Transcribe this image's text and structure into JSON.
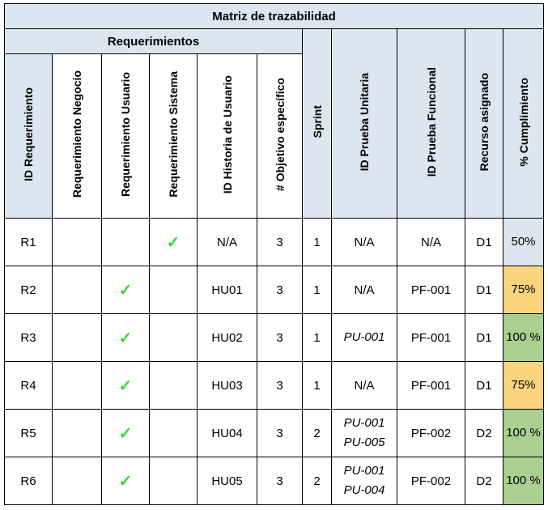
{
  "title": "Matriz de trazabilidad",
  "group_header": "Requerimientos",
  "columns": [
    "ID Requerimiento",
    "Requerimiento Negocio",
    "Requerimiento Usuario",
    "Requerimiento Sistema",
    "ID Historia de Usuario",
    "# Objetivo específico",
    "Sprint",
    "ID Prueba Unitaria",
    "ID Prueba Funcional",
    "Recurso asignado",
    "% Cumplimiento"
  ],
  "rows": [
    {
      "id": "R1",
      "negocio": "",
      "usuario": "",
      "sistema": "✓",
      "historia": "N/A",
      "objetivo": "3",
      "sprint": "1",
      "prueba_unitaria": [
        "N/A"
      ],
      "prueba_funcional": "N/A",
      "recurso": "D1",
      "cumplimiento": "50%",
      "status_color": "#dce6f1"
    },
    {
      "id": "R2",
      "negocio": "",
      "usuario": "✓",
      "sistema": "",
      "historia": "HU01",
      "objetivo": "3",
      "sprint": "1",
      "prueba_unitaria": [
        "N/A"
      ],
      "prueba_funcional": "PF-001",
      "recurso": "D1",
      "cumplimiento": "75%",
      "status_color": "#fdd47e"
    },
    {
      "id": "R3",
      "negocio": "",
      "usuario": "✓",
      "sistema": "",
      "historia": "HU02",
      "objetivo": "3",
      "sprint": "1",
      "prueba_unitaria": [
        "PU-001"
      ],
      "prueba_funcional": "PF-001",
      "recurso": "D1",
      "cumplimiento": "100 %",
      "status_color": "#a9d08e"
    },
    {
      "id": "R4",
      "negocio": "",
      "usuario": "✓",
      "sistema": "",
      "historia": "HU03",
      "objetivo": "3",
      "sprint": "1",
      "prueba_unitaria": [
        "N/A"
      ],
      "prueba_funcional": "PF-001",
      "recurso": "D1",
      "cumplimiento": "75%",
      "status_color": "#fdd47e"
    },
    {
      "id": "R5",
      "negocio": "",
      "usuario": "✓",
      "sistema": "",
      "historia": "HU04",
      "objetivo": "3",
      "sprint": "2",
      "prueba_unitaria": [
        "PU-001",
        "PU-005"
      ],
      "prueba_funcional": "PF-002",
      "recurso": "D2",
      "cumplimiento": "100 %",
      "status_color": "#a9d08e"
    },
    {
      "id": "R6",
      "negocio": "",
      "usuario": "✓",
      "sistema": "",
      "historia": "HU05",
      "objetivo": "3",
      "sprint": "2",
      "prueba_unitaria": [
        "PU-001",
        "PU-004"
      ],
      "prueba_funcional": "PF-002",
      "recurso": "D2",
      "cumplimiento": "100 %",
      "status_color": "#a9d08e"
    }
  ],
  "colors": {
    "header_bg": "#dce6f1",
    "check": "#33dd33"
  }
}
